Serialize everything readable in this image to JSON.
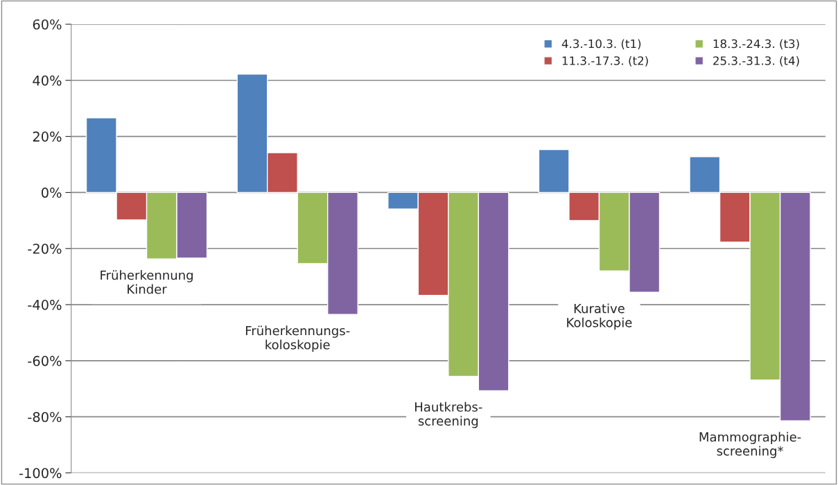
{
  "chart_data": {
    "type": "bar",
    "categories": [
      "Früherkennung\nKinder",
      "Früherkennungs-\nkoloskopie",
      "Hautkrebs-\nscreening",
      "Kurative\nKoloskopie",
      "Mammographie-\nscreening*"
    ],
    "series": [
      {
        "name": "4.3.-10.3. (t1)",
        "color": "#4f81bd",
        "values": [
          26.6,
          42.2,
          -5.9,
          15.3,
          12.8
        ]
      },
      {
        "name": "11.3.-17.3. (t2)",
        "color": "#c0504d",
        "values": [
          -9.8,
          14.2,
          -36.7,
          -10,
          -17.7
        ]
      },
      {
        "name": "18.3.-24.3. (t3)",
        "color": "#9bbb59",
        "values": [
          -23.7,
          -25.4,
          -65.6,
          -28,
          -66.9
        ]
      },
      {
        "name": "25.3.-31.3. (t4)",
        "color": "#8064a2",
        "values": [
          -23.4,
          -43.5,
          -70.7,
          -35.6,
          -81.4
        ]
      }
    ],
    "ylim": [
      -100,
      60
    ],
    "yticks": [
      {
        "value": -100,
        "label": "-100%"
      },
      {
        "value": -80,
        "label": "-80%"
      },
      {
        "value": -60,
        "label": "-60%"
      },
      {
        "value": -40,
        "label": "-40%"
      },
      {
        "value": -20,
        "label": "-20%"
      },
      {
        "value": 0,
        "label": "0%"
      },
      {
        "value": 20,
        "label": "20%"
      },
      {
        "value": 40,
        "label": "40%"
      },
      {
        "value": 60,
        "label": "60%"
      }
    ],
    "grid": "y",
    "legend": "top right"
  }
}
